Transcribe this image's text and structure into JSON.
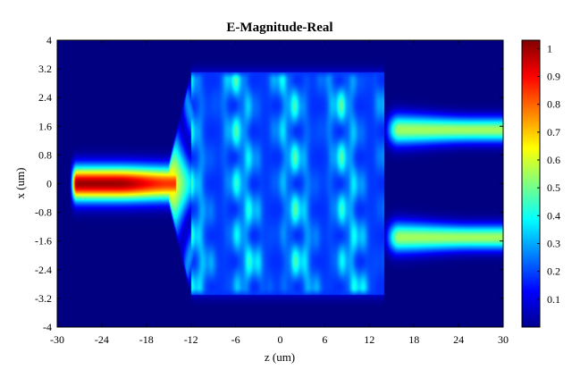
{
  "chart_data": {
    "type": "heatmap",
    "title": "E-Magnitude-Real",
    "xlabel": "z (um)",
    "ylabel": "x (um)",
    "xlim": [
      -30,
      30
    ],
    "ylim": [
      -4,
      4
    ],
    "xticks": [
      -30,
      -24,
      -18,
      -12,
      -6,
      0,
      6,
      12,
      18,
      24,
      30
    ],
    "yticks": [
      -4,
      -3.2,
      -2.4,
      -1.6,
      -0.8,
      0,
      0.8,
      1.6,
      2.4,
      3.2,
      4
    ],
    "xtick_labels": [
      "-30",
      "-24",
      "-18",
      "-12",
      "-6",
      "0",
      "6",
      "12",
      "18",
      "24",
      "30"
    ],
    "ytick_labels": [
      "-4",
      "-3.2",
      "-2.4",
      "-1.6",
      "-0.8",
      "0",
      "0.8",
      "1.6",
      "2.4",
      "3.2",
      "4"
    ],
    "colorbar": {
      "colormap": "jet",
      "range": [
        0,
        1.03
      ],
      "ticks": [
        0.1,
        0.2,
        0.3,
        0.4,
        0.5,
        0.6,
        0.7,
        0.8,
        0.9,
        1
      ],
      "tick_labels": [
        "0.1",
        "0.2",
        "0.3",
        "0.4",
        "0.5",
        "0.6",
        "0.7",
        "0.8",
        "0.9",
        "1"
      ]
    },
    "field_features": {
      "input_waveguide": {
        "z_range": [
          -28,
          -15
        ],
        "x_center": 0,
        "peak_value": 1.0
      },
      "taper": {
        "z_range": [
          -15,
          -12
        ],
        "x_span_end": [
          -2.9,
          2.9
        ]
      },
      "mmi_region": {
        "z_range": [
          -12,
          14
        ],
        "x_range": [
          -2.9,
          2.9
        ],
        "typical_value": 0.35
      },
      "output_waveguides": [
        {
          "z_range": [
            14,
            30
          ],
          "x_center": 1.5,
          "peak_value": 0.55
        },
        {
          "z_range": [
            14,
            30
          ],
          "x_center": -1.5,
          "peak_value": 0.55
        }
      ]
    }
  }
}
